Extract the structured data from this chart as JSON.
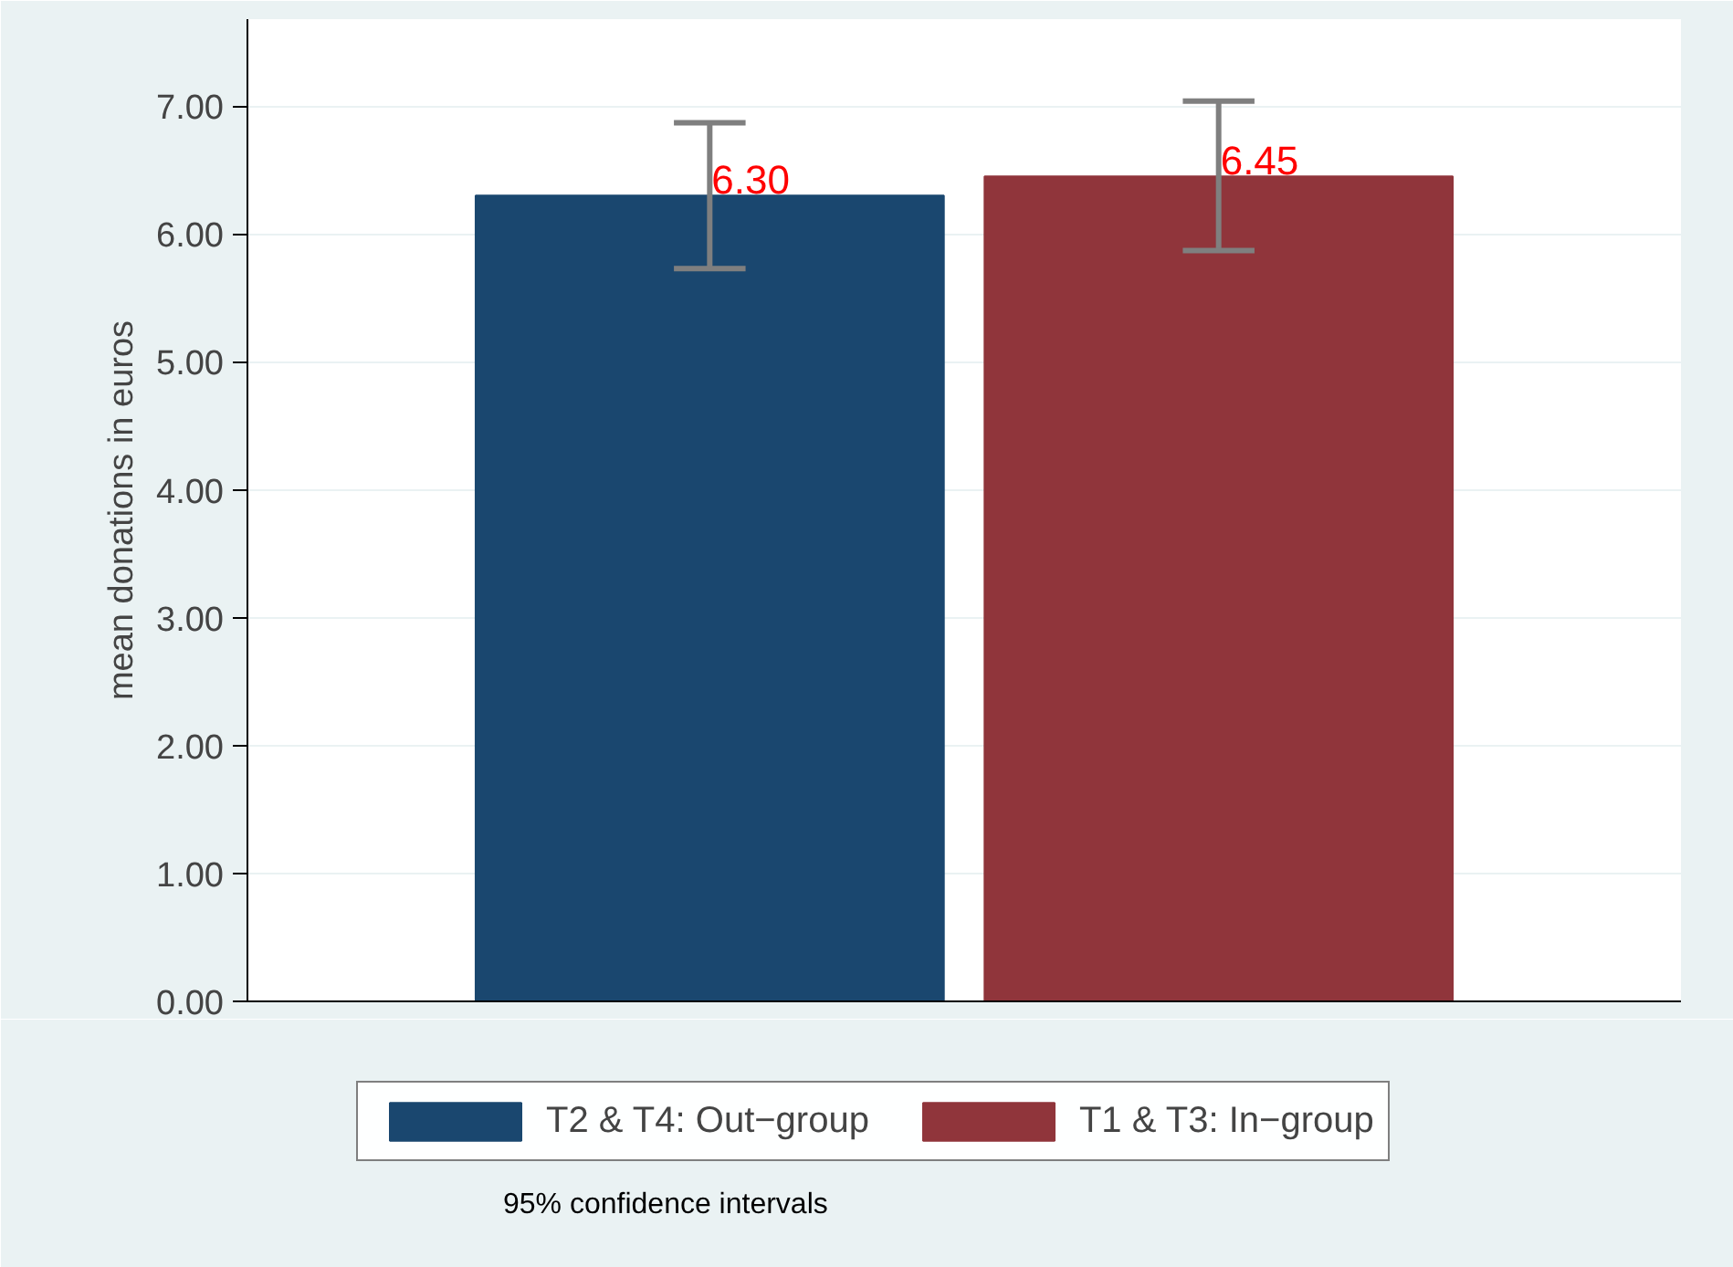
{
  "chart_data": {
    "type": "bar",
    "ylabel": "mean donations in euros",
    "categories": [
      null
    ],
    "series": [
      {
        "name": "T2 & T4: Out−group",
        "color": "#1a476f",
        "values": [
          6.3
        ],
        "value_labels": [
          "6.30"
        ],
        "errors": [
          [
            5.73,
            6.87
          ]
        ]
      },
      {
        "name": "T1 & T3: In−group",
        "color": "#90353b",
        "values": [
          6.45
        ],
        "value_labels": [
          "6.45"
        ],
        "errors": [
          [
            5.87,
            7.04
          ]
        ]
      }
    ],
    "ylim": [
      0,
      7.68
    ],
    "yticks": [
      {
        "value": 0,
        "label": "0.00"
      },
      {
        "value": 1,
        "label": "1.00"
      },
      {
        "value": 2,
        "label": "2.00"
      },
      {
        "value": 3,
        "label": "3.00"
      },
      {
        "value": 4,
        "label": "4.00"
      },
      {
        "value": 5,
        "label": "5.00"
      },
      {
        "value": 6,
        "label": "6.00"
      },
      {
        "value": 7,
        "label": "7.00"
      }
    ],
    "grid": "y",
    "legend": "bottom",
    "tick_labels": "y",
    "annotations": [
      "95% confidence intervals"
    ]
  }
}
